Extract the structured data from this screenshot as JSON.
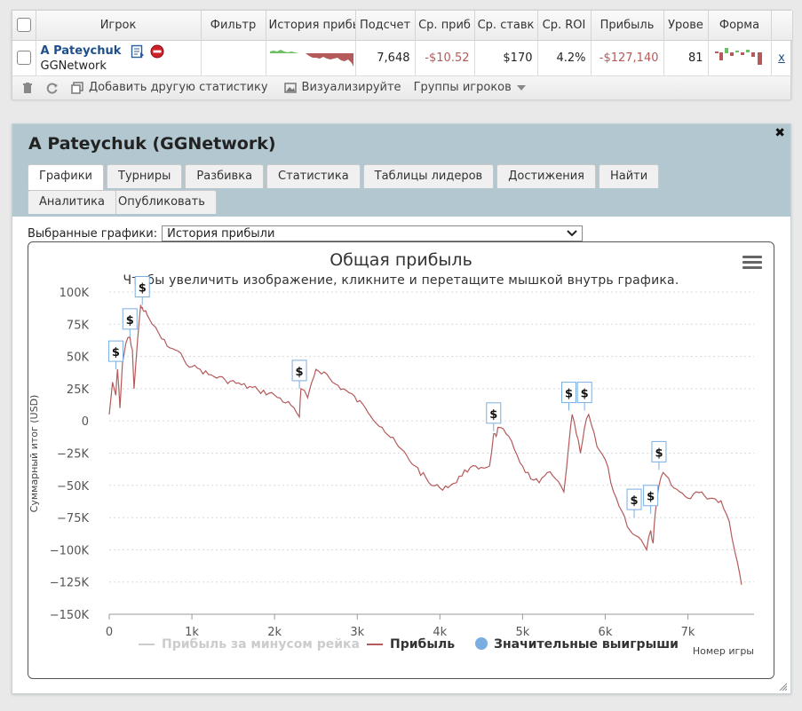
{
  "stats": {
    "headers": {
      "player": "Игрок",
      "filter": "Фильтр",
      "history": "История прибы",
      "count": "Подсчет",
      "avg_profit": "Ср. приб",
      "avg_stake": "Ср. ставк",
      "avg_roi": "Ср. ROI",
      "profit": "Прибыль",
      "level": "Урове",
      "form": "Форма"
    },
    "row": {
      "player_name": "A Pateychuk",
      "network": "GGNetwork",
      "count": "7,648",
      "avg_profit": "-$10.52",
      "avg_stake": "$170",
      "avg_roi": "4.2%",
      "profit": "-$127,140",
      "level": "81",
      "remove": "x"
    },
    "toolbar": {
      "add_stat": "Добавить другую статистику",
      "visualize": "Визуализируйте",
      "groups": "Группы игроков"
    }
  },
  "panel": {
    "title": "A Pateychuk (GGNetwork)",
    "close": "✖",
    "tabs": [
      "Графики",
      "Турниры",
      "Разбивка",
      "Статистика",
      "Таблицы лидеров",
      "Достижения",
      "Найти",
      "Опубликовать"
    ],
    "tabs_row2": [
      "Аналитика"
    ],
    "selector_label": "Выбранные графики:",
    "selector_value": "История прибыли"
  },
  "chart_data": {
    "type": "line",
    "title": "Общая прибыль",
    "subtitle": "Чтобы увеличить изображение, кликните и перетащите мышкой внутрь графика.",
    "ylabel": "Суммарный итог (USD)",
    "xlabel": "Номер игры",
    "ylim": [
      -150000,
      100000
    ],
    "xlim": [
      0,
      7800
    ],
    "y_ticks": [
      "100K",
      "75K",
      "50K",
      "25K",
      "0",
      "−25K",
      "−50K",
      "−75K",
      "−100K",
      "−125K",
      "−150K"
    ],
    "x_ticks": [
      "0",
      "1k",
      "2k",
      "3k",
      "4k",
      "5k",
      "6k",
      "7k"
    ],
    "grid": "horizontal dashed",
    "legend_position": "bottom-center",
    "legend": [
      "Прибыль за минусом рейка",
      "Прибыль",
      "Значительные выигрыши"
    ],
    "series": [
      {
        "name": "Прибыль",
        "color": "#b55a5a",
        "x": [
          0,
          40,
          80,
          100,
          130,
          160,
          200,
          250,
          280,
          300,
          340,
          380,
          400,
          420,
          460,
          520,
          600,
          700,
          800,
          900,
          1000,
          1100,
          1200,
          1400,
          1600,
          1800,
          2000,
          2200,
          2300,
          2320,
          2400,
          2450,
          2500,
          2600,
          2700,
          2900,
          3100,
          3300,
          3500,
          3700,
          3900,
          4000,
          4200,
          4300,
          4500,
          4600,
          4650,
          4680,
          4700,
          4800,
          4900,
          5000,
          5100,
          5200,
          5300,
          5400,
          5500,
          5560,
          5600,
          5650,
          5700,
          5750,
          5800,
          5900,
          6000,
          6100,
          6200,
          6300,
          6400,
          6500,
          6550,
          6580,
          6600,
          6650,
          6700,
          6800,
          6900,
          7000,
          7100,
          7200,
          7300,
          7400,
          7500,
          7600,
          7650
        ],
        "y": [
          5000,
          30000,
          20000,
          40000,
          10000,
          45000,
          60000,
          65000,
          55000,
          25000,
          60000,
          90000,
          88000,
          85000,
          82000,
          75000,
          68000,
          58000,
          55000,
          48000,
          42000,
          40000,
          36000,
          32000,
          28000,
          24000,
          20000,
          12000,
          3000,
          25000,
          18000,
          30000,
          40000,
          38000,
          30000,
          22000,
          10000,
          -5000,
          -20000,
          -35000,
          -50000,
          -52000,
          -48000,
          -38000,
          -36000,
          -35000,
          -10000,
          -12000,
          -5000,
          -10000,
          -22000,
          -35000,
          -45000,
          -48000,
          -40000,
          -45000,
          -55000,
          -18000,
          5000,
          -10000,
          -25000,
          -5000,
          5000,
          -20000,
          -30000,
          -55000,
          -70000,
          -85000,
          -90000,
          -100000,
          -85000,
          -95000,
          -75000,
          -50000,
          -40000,
          -50000,
          -55000,
          -60000,
          -55000,
          -58000,
          -60000,
          -62000,
          -78000,
          -110000,
          -127140
        ]
      }
    ],
    "big_wins": [
      {
        "x": 80,
        "y": 40000
      },
      {
        "x": 250,
        "y": 65000
      },
      {
        "x": 400,
        "y": 90000
      },
      {
        "x": 2300,
        "y": 25000
      },
      {
        "x": 4650,
        "y": -8000
      },
      {
        "x": 5560,
        "y": 8000
      },
      {
        "x": 5750,
        "y": 8000
      },
      {
        "x": 6350,
        "y": -75000
      },
      {
        "x": 6550,
        "y": -72000
      },
      {
        "x": 6650,
        "y": -38000
      }
    ],
    "big_win_label": "$"
  }
}
